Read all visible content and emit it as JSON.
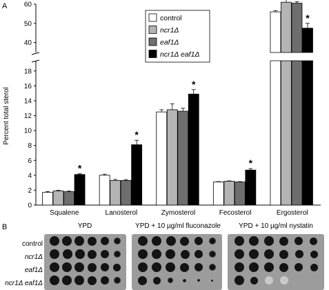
{
  "panel_a": {
    "letter": "A",
    "chart_data": {
      "type": "bar",
      "ylabel": "Percent total sterol",
      "ylim_lower": [
        0,
        19
      ],
      "ylim_upper": [
        37,
        60
      ],
      "yticks_lower": [
        "0",
        "2",
        "4",
        "6",
        "8",
        "10",
        "12",
        "14",
        "16",
        "18"
      ],
      "yticks_upper": [
        "40",
        "50",
        "60"
      ],
      "categories": [
        "Squalene",
        "Lanosterol",
        "Zymosterol",
        "Fecosterol",
        "Ergosterol"
      ],
      "series": [
        {
          "name": "control",
          "color": "#ffffff",
          "values": [
            1.7,
            4.0,
            12.5,
            3.1,
            56.0
          ],
          "errors": [
            0.12,
            0.15,
            0.3,
            0.05,
            0.6
          ]
        },
        {
          "name": "ncr1Δ",
          "color": "#b4b4b4",
          "values": [
            1.9,
            3.3,
            12.8,
            3.2,
            61.0
          ],
          "errors": [
            0.08,
            0.15,
            0.8,
            0.05,
            4.5
          ]
        },
        {
          "name": "eaf1Δ",
          "color": "#6e6e6e",
          "values": [
            1.8,
            3.3,
            12.6,
            3.1,
            60.5
          ],
          "errors": [
            0.08,
            0.12,
            0.4,
            0.05,
            0.8
          ]
        },
        {
          "name": "ncr1Δ eaf1Δ",
          "color": "#000000",
          "values": [
            4.1,
            8.1,
            14.9,
            4.7,
            47.5
          ],
          "errors": [
            0.1,
            0.6,
            0.6,
            0.2,
            2.5
          ]
        }
      ],
      "significance": [
        "*",
        "*",
        "*",
        "*",
        "*"
      ],
      "legend": {
        "position": "top-center",
        "entries": [
          "control",
          "ncr1Δ",
          "eaf1Δ",
          "ncr1Δ eaf1Δ"
        ]
      },
      "grid": false
    }
  },
  "panel_b": {
    "letter": "B",
    "plates": [
      {
        "title": "YPD"
      },
      {
        "title": "YPD + 10 µg/ml fluconazole"
      },
      {
        "title": "YPD + 10 µg/ml nystatin"
      }
    ],
    "strains": [
      "control",
      "ncr1Δ",
      "eaf1Δ",
      "ncr1Δ eaf1Δ"
    ]
  }
}
